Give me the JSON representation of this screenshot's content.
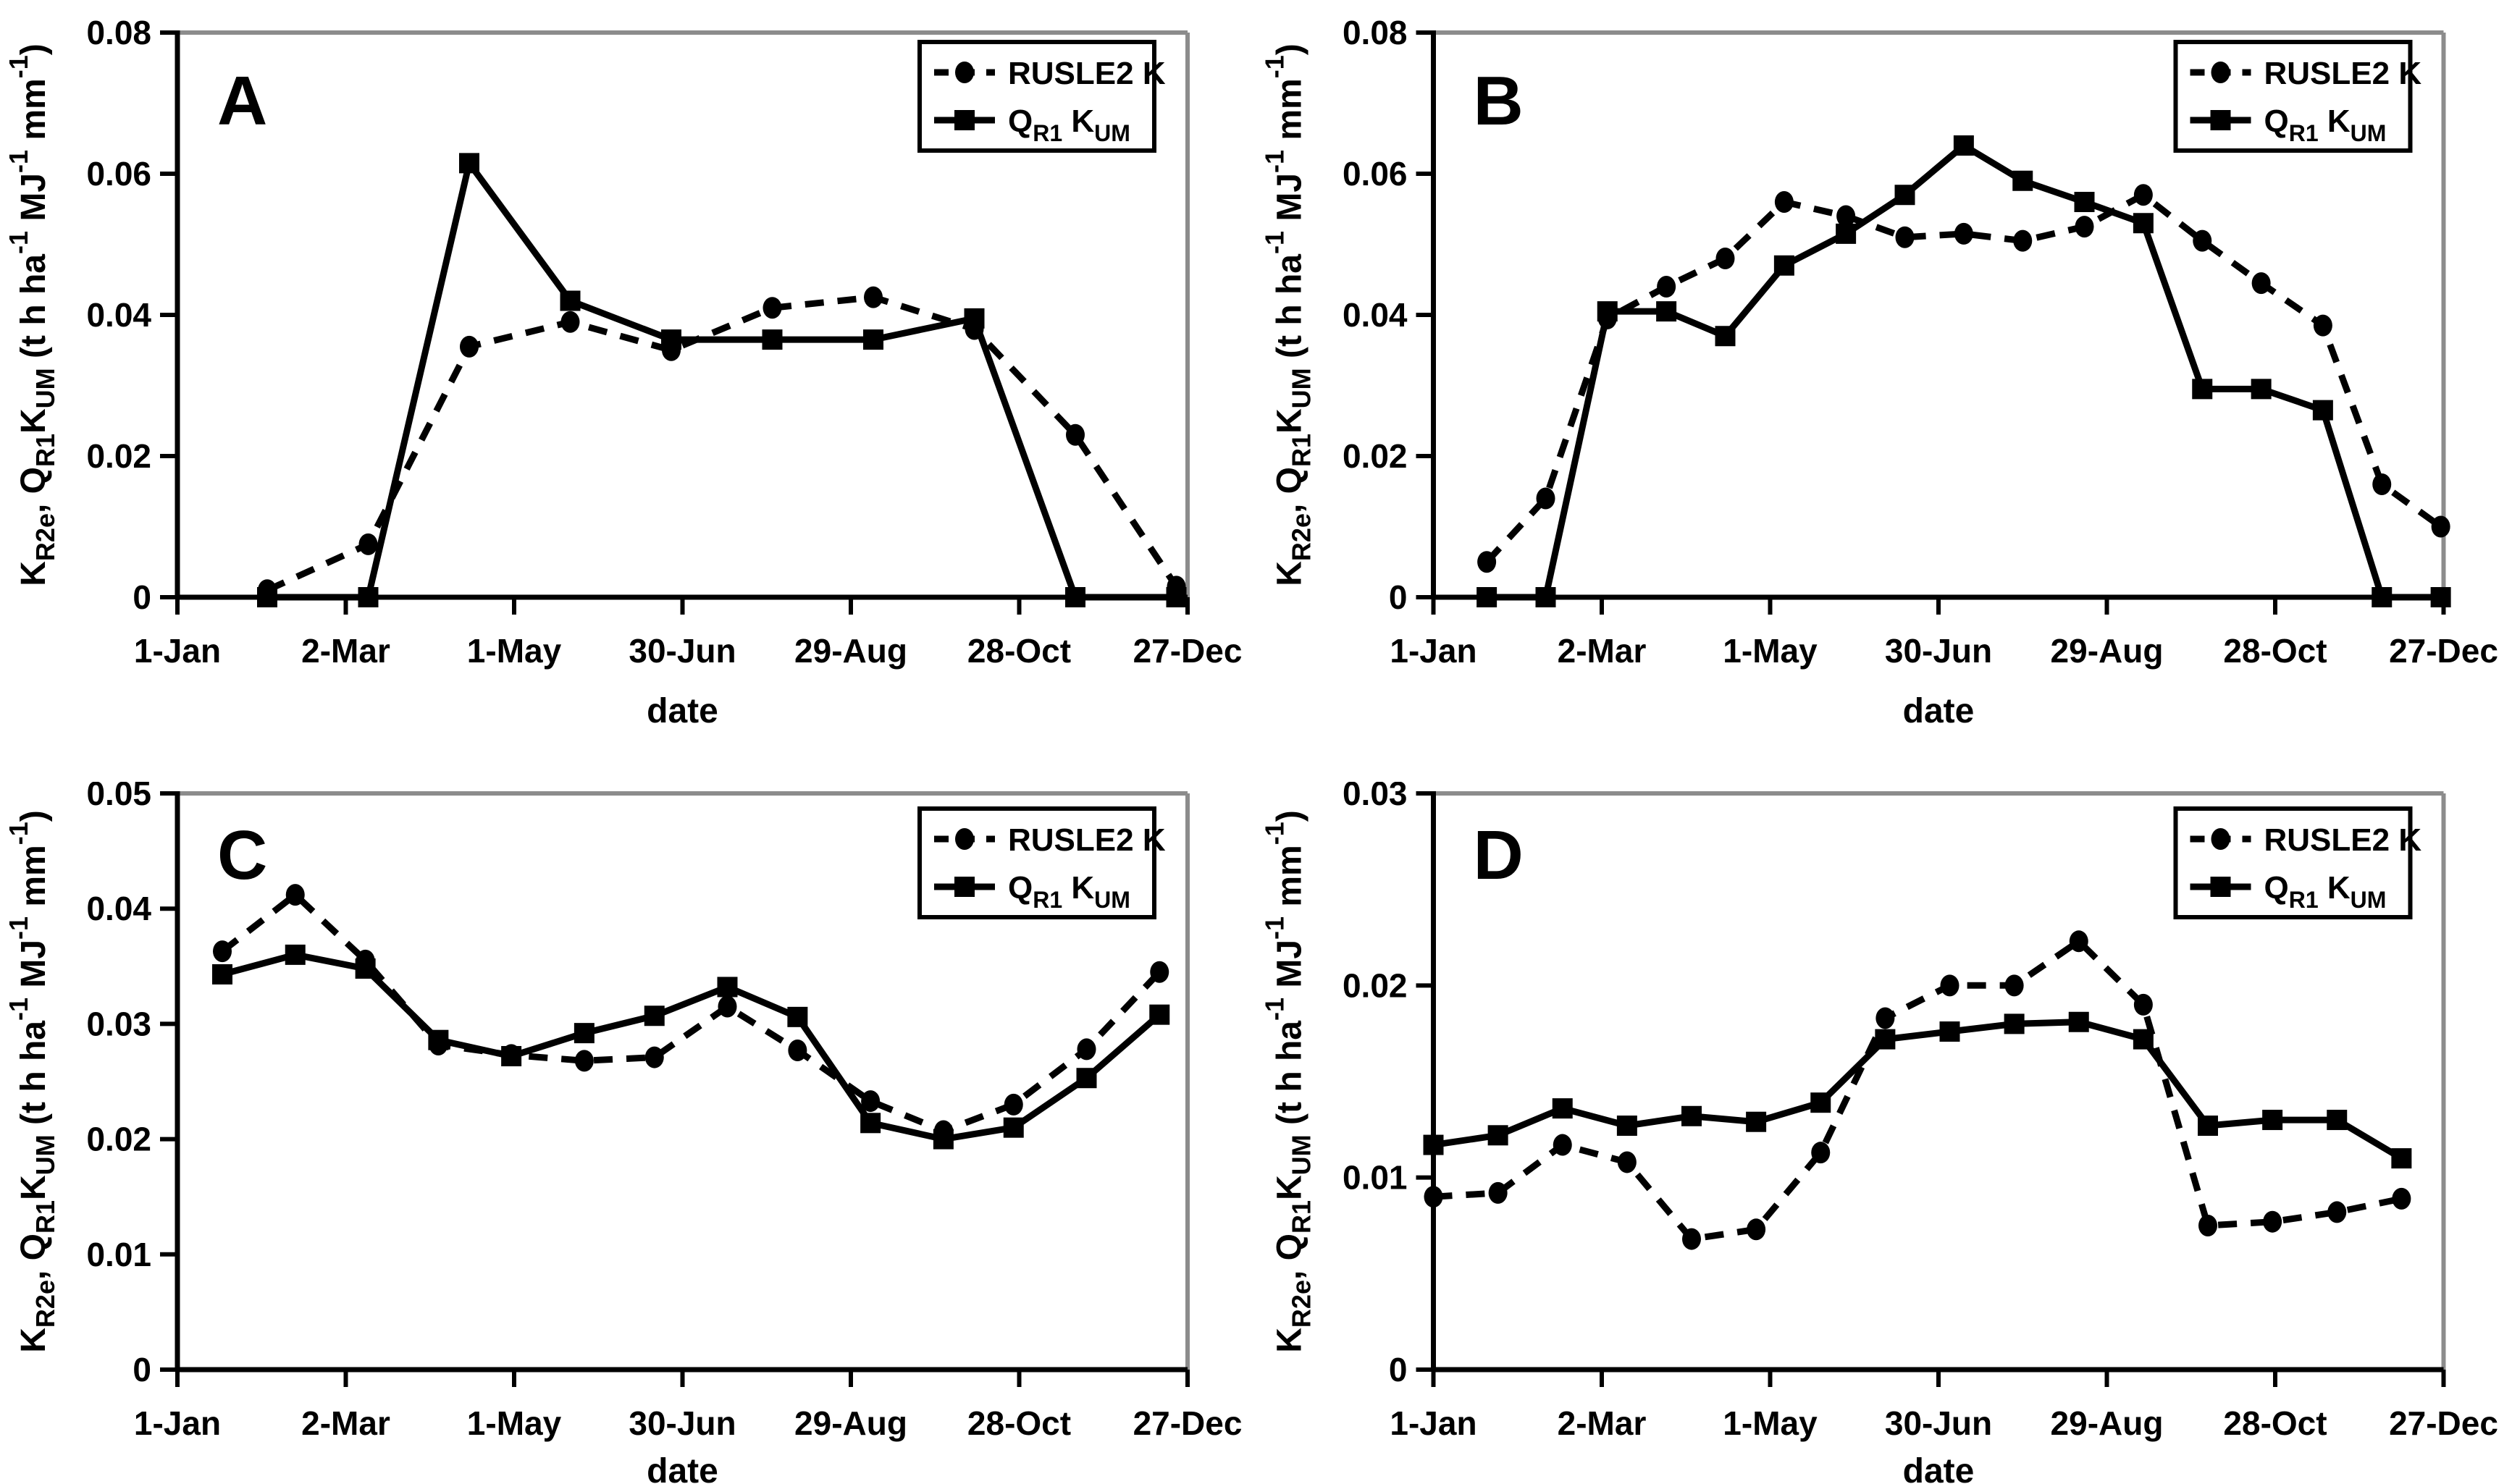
{
  "figure": {
    "background": "#ffffff",
    "ink_color": "#000000",
    "frame_color": "#8c8c8c",
    "x_axis_title": "date",
    "x_ticks": {
      "days": [
        1,
        61,
        121,
        181,
        241,
        301,
        361
      ],
      "labels": [
        "1-Jan",
        "2-Mar",
        "1-May",
        "30-Jun",
        "29-Aug",
        "28-Oct",
        "27-Dec"
      ]
    },
    "y_label_segments": [
      {
        "t": "K",
        "s": "n"
      },
      {
        "t": "R2e",
        "s": "sub"
      },
      {
        "t": ", Q",
        "s": "n"
      },
      {
        "t": "R1",
        "s": "sub"
      },
      {
        "t": "K",
        "s": "n"
      },
      {
        "t": "UM",
        "s": "sub"
      },
      {
        "t": " (t h ha",
        "s": "n"
      },
      {
        "t": "-1",
        "s": "sup"
      },
      {
        "t": " MJ",
        "s": "n"
      },
      {
        "t": "-1",
        "s": "sup"
      },
      {
        "t": " mm",
        "s": "n"
      },
      {
        "t": "-1",
        "s": "sup"
      },
      {
        "t": ")",
        "s": "n"
      }
    ],
    "legend": {
      "entries": [
        {
          "key": "rusle2-k",
          "marker": "circle",
          "line": "dashed",
          "label_segments": [
            {
              "t": "RUSLE2 K",
              "s": "n"
            }
          ]
        },
        {
          "key": "qr1-kum",
          "marker": "square",
          "line": "solid",
          "label_segments": [
            {
              "t": "Q",
              "s": "n"
            },
            {
              "t": "R1",
              "s": "sub"
            },
            {
              "t": " K",
              "s": "n"
            },
            {
              "t": "UM",
              "s": "sub"
            }
          ]
        }
      ]
    }
  },
  "chart_data": [
    {
      "panel": "A",
      "type": "line",
      "x_unit": "day-of-year",
      "xlim": [
        1,
        361
      ],
      "ylim": [
        0,
        0.08
      ],
      "y_tick_step": 0.02,
      "y_tick_labels": [
        "0",
        "0.02",
        "0.04",
        "0.06",
        "0.08"
      ],
      "x_days": [
        33,
        69,
        105,
        141,
        177,
        213,
        249,
        285,
        321,
        357
      ],
      "series": [
        {
          "name": "RUSLE2 K",
          "style": "dashed-circle",
          "values": [
            0.001,
            0.0075,
            0.0355,
            0.039,
            0.035,
            0.041,
            0.0425,
            0.038,
            0.023,
            0.0015
          ]
        },
        {
          "name": "QR1 KUM",
          "style": "solid-square",
          "values": [
            0,
            0,
            0.0615,
            0.042,
            0.0365,
            0.0365,
            0.0365,
            0.0395,
            0,
            0
          ]
        }
      ]
    },
    {
      "panel": "B",
      "type": "line",
      "x_unit": "day-of-year",
      "xlim": [
        1,
        361
      ],
      "ylim": [
        0,
        0.08
      ],
      "y_tick_step": 0.02,
      "y_tick_labels": [
        "0",
        "0.02",
        "0.04",
        "0.06",
        "0.08"
      ],
      "x_days": [
        20,
        41,
        63,
        84,
        105,
        126,
        148,
        169,
        190,
        211,
        233,
        254,
        275,
        296,
        318,
        339,
        360
      ],
      "series": [
        {
          "name": "RUSLE2 K",
          "style": "dashed-circle",
          "values": [
            0.005,
            0.014,
            0.0395,
            0.044,
            0.048,
            0.056,
            0.054,
            0.051,
            0.0515,
            0.0505,
            0.0525,
            0.057,
            0.0505,
            0.0445,
            0.0385,
            0.016,
            0.01
          ]
        },
        {
          "name": "QR1 KUM",
          "style": "solid-square",
          "values": [
            0,
            0,
            0.0405,
            0.0405,
            0.037,
            0.047,
            0.0515,
            0.057,
            0.064,
            0.059,
            0.056,
            0.053,
            0.0295,
            0.0295,
            0.0265,
            0,
            0
          ]
        }
      ]
    },
    {
      "panel": "C",
      "type": "line",
      "x_unit": "day-of-year",
      "xlim": [
        1,
        361
      ],
      "ylim": [
        0,
        0.05
      ],
      "y_tick_step": 0.01,
      "y_tick_labels": [
        "0",
        "0.01",
        "0.02",
        "0.03",
        "0.04",
        "0.05"
      ],
      "x_days": [
        17,
        43,
        68,
        94,
        120,
        146,
        171,
        197,
        222,
        248,
        274,
        299,
        325,
        351
      ],
      "series": [
        {
          "name": "RUSLE2 K",
          "style": "dashed-circle",
          "values": [
            0.0363,
            0.0412,
            0.0355,
            0.0282,
            0.0273,
            0.0268,
            0.0271,
            0.0315,
            0.0277,
            0.0233,
            0.0207,
            0.023,
            0.0278,
            0.0345
          ]
        },
        {
          "name": "QR1 KUM",
          "style": "solid-square",
          "values": [
            0.0343,
            0.036,
            0.0348,
            0.0286,
            0.0272,
            0.0292,
            0.0307,
            0.0332,
            0.0306,
            0.0214,
            0.02,
            0.021,
            0.0253,
            0.0308
          ]
        }
      ]
    },
    {
      "panel": "D",
      "type": "line",
      "x_unit": "day-of-year",
      "xlim": [
        1,
        361
      ],
      "ylim": [
        0,
        0.03
      ],
      "y_tick_step": 0.01,
      "y_tick_labels": [
        "0",
        "0.01",
        "0.02",
        "0.03"
      ],
      "x_days": [
        1,
        24,
        47,
        70,
        93,
        116,
        139,
        162,
        185,
        208,
        231,
        254,
        277,
        300,
        323,
        346
      ],
      "series": [
        {
          "name": "RUSLE2 K",
          "style": "dashed-circle",
          "values": [
            0.009,
            0.0092,
            0.0117,
            0.0108,
            0.0068,
            0.0073,
            0.0113,
            0.0183,
            0.02,
            0.02,
            0.0223,
            0.019,
            0.0075,
            0.0077,
            0.0082,
            0.0089
          ]
        },
        {
          "name": "QR1 KUM",
          "style": "solid-square",
          "values": [
            0.0117,
            0.0122,
            0.0136,
            0.0127,
            0.0132,
            0.0129,
            0.0139,
            0.0172,
            0.0176,
            0.018,
            0.0181,
            0.0172,
            0.0127,
            0.013,
            0.013,
            0.011
          ]
        }
      ]
    }
  ]
}
